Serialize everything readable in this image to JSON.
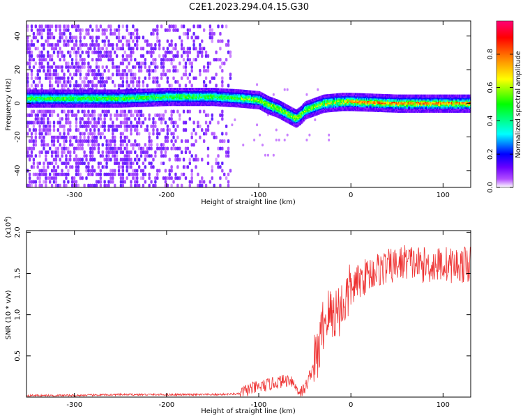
{
  "title": "C2E1.2023.294.04.15.G30",
  "chart_data": [
    {
      "type": "heatmap",
      "xlabel": "Height of straight line (km)",
      "ylabel": "Frequency (Hz)",
      "xlim": [
        -352,
        130
      ],
      "ylim": [
        -50,
        49
      ],
      "x_ticks": [
        -300,
        -200,
        -100,
        0,
        100
      ],
      "y_ticks": [
        -40,
        -20,
        0,
        20,
        40
      ],
      "colorbar": {
        "label": "Normalized spectral amplitude",
        "range": [
          0,
          1
        ],
        "ticks": [
          0,
          0.2,
          0.4,
          0.6,
          0.8
        ],
        "tick_labels": [
          "0.0",
          "0.2",
          "0.4",
          "0.6",
          "0.8"
        ],
        "colormap": [
          "#ffffff",
          "#b24dff",
          "#6a00ff",
          "#0000ff",
          "#00ffff",
          "#00ff00",
          "#ffff00",
          "#ff7f00",
          "#ff0000",
          "#ff0077"
        ]
      },
      "signal_track": [
        {
          "x": -350,
          "y": 3
        },
        {
          "x": -300,
          "y": 3
        },
        {
          "x": -250,
          "y": 3
        },
        {
          "x": -200,
          "y": 4
        },
        {
          "x": -150,
          "y": 4
        },
        {
          "x": -120,
          "y": 3
        },
        {
          "x": -100,
          "y": 2
        },
        {
          "x": -90,
          "y": -1
        },
        {
          "x": -80,
          "y": -3
        },
        {
          "x": -70,
          "y": -6
        },
        {
          "x": -60,
          "y": -9
        },
        {
          "x": -55,
          "y": -7
        },
        {
          "x": -50,
          "y": -4
        },
        {
          "x": -40,
          "y": -2
        },
        {
          "x": -30,
          "y": 0
        },
        {
          "x": -10,
          "y": 1
        },
        {
          "x": 0,
          "y": 1
        },
        {
          "x": 50,
          "y": 0
        },
        {
          "x": 100,
          "y": 0
        },
        {
          "x": 130,
          "y": 0
        }
      ],
      "noise_extent_x": [
        -352,
        -130
      ]
    },
    {
      "type": "line",
      "xlabel": "Height of straight line (km)",
      "ylabel": "SNR (10 * v/v)",
      "y_multiplier": "(x10",
      "y_multiplier_exp": "4",
      "y_multiplier_close": ")",
      "xlim": [
        -352,
        130
      ],
      "ylim": [
        0,
        2.02
      ],
      "x_ticks": [
        -300,
        -200,
        -100,
        0,
        100
      ],
      "y_ticks": [
        0.5,
        1.0,
        1.5,
        2.0
      ],
      "y_tick_labels": [
        "0.5",
        "1.0",
        "1.5",
        "2.0"
      ],
      "color": "#ee3333",
      "series": [
        {
          "x": [
            -350,
            -300,
            -250,
            -200,
            -150,
            -120,
            -110,
            -100,
            -90,
            -80,
            -70,
            -65,
            -60,
            -55,
            -50,
            -45,
            -40,
            -35,
            -30,
            -25,
            -20,
            -15,
            -10,
            -5,
            0,
            10,
            20,
            30,
            40,
            50,
            60,
            70,
            80,
            90,
            100,
            110,
            120,
            130
          ],
          "values": [
            0.02,
            0.02,
            0.03,
            0.03,
            0.03,
            0.04,
            0.1,
            0.12,
            0.15,
            0.18,
            0.2,
            0.22,
            0.12,
            0.06,
            0.1,
            0.25,
            0.4,
            0.55,
            0.9,
            1.0,
            1.0,
            1.05,
            1.1,
            1.2,
            1.3,
            1.42,
            1.5,
            1.55,
            1.58,
            1.6,
            1.65,
            1.62,
            1.6,
            1.6,
            1.62,
            1.6,
            1.6,
            1.62
          ]
        }
      ]
    }
  ]
}
